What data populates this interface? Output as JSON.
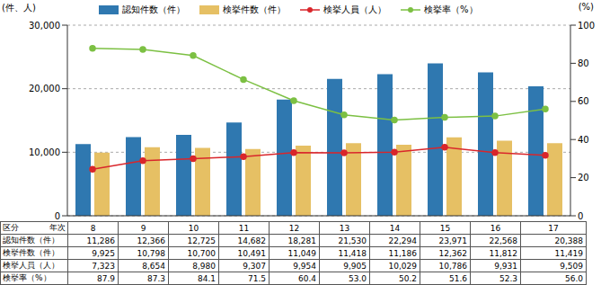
{
  "chart_data": {
    "type": "bar",
    "categories": [
      "8",
      "9",
      "10",
      "11",
      "12",
      "13",
      "14",
      "15",
      "16",
      "17"
    ],
    "y_label": "(件、人)",
    "y2_label": "(%)",
    "ylim": [
      0,
      30000
    ],
    "yticks": [
      0,
      {
        "value": 10000,
        "label": "10,000"
      },
      {
        "value": 20000,
        "label": "20,000"
      },
      {
        "value": 30000,
        "label": "30,000"
      }
    ],
    "y2lim": [
      0,
      100
    ],
    "y2ticks": [
      0,
      20,
      40,
      60,
      80,
      100
    ],
    "grid": true,
    "series": [
      {
        "name": "認知件数（件）",
        "type": "bar",
        "color": "#2f78b0",
        "values": [
          11286,
          12366,
          12725,
          14682,
          18281,
          21530,
          22294,
          23971,
          22568,
          20388
        ],
        "value_labels": [
          "11,286",
          "12,366",
          "12,725",
          "14,682",
          "18,281",
          "21,530",
          "22,294",
          "23,971",
          "22,568",
          "20,388"
        ]
      },
      {
        "name": "検挙件数（件）",
        "type": "bar",
        "color": "#e6c064",
        "values": [
          9925,
          10798,
          10700,
          10491,
          11049,
          11418,
          11186,
          12362,
          11812,
          11419
        ],
        "value_labels": [
          "9,925",
          "10,798",
          "10,700",
          "10,491",
          "11,049",
          "11,418",
          "11,186",
          "12,362",
          "11,812",
          "11,419"
        ]
      },
      {
        "name": "検挙人員（人）",
        "type": "line",
        "color": "#d9262b",
        "marker": "circle",
        "values": [
          7323,
          8654,
          8980,
          9307,
          9954,
          9905,
          10029,
          10786,
          9931,
          9509
        ],
        "value_labels": [
          "7,323",
          "8,654",
          "8,980",
          "9,307",
          "9,954",
          "9,905",
          "10,029",
          "10,786",
          "9,931",
          "9,509"
        ]
      },
      {
        "name": "検挙率（%）",
        "type": "line",
        "color": "#7cc043",
        "marker": "circle",
        "axis": "y2",
        "values": [
          87.9,
          87.3,
          84.1,
          71.5,
          60.4,
          53.0,
          50.2,
          51.6,
          52.3,
          56.0
        ],
        "value_labels": [
          "87.9",
          "87.3",
          "84.1",
          "71.5",
          "60.4",
          "53.0",
          "50.2",
          "51.6",
          "52.3",
          "56.0"
        ]
      }
    ]
  },
  "table": {
    "header": [
      "区分",
      "年次"
    ]
  }
}
